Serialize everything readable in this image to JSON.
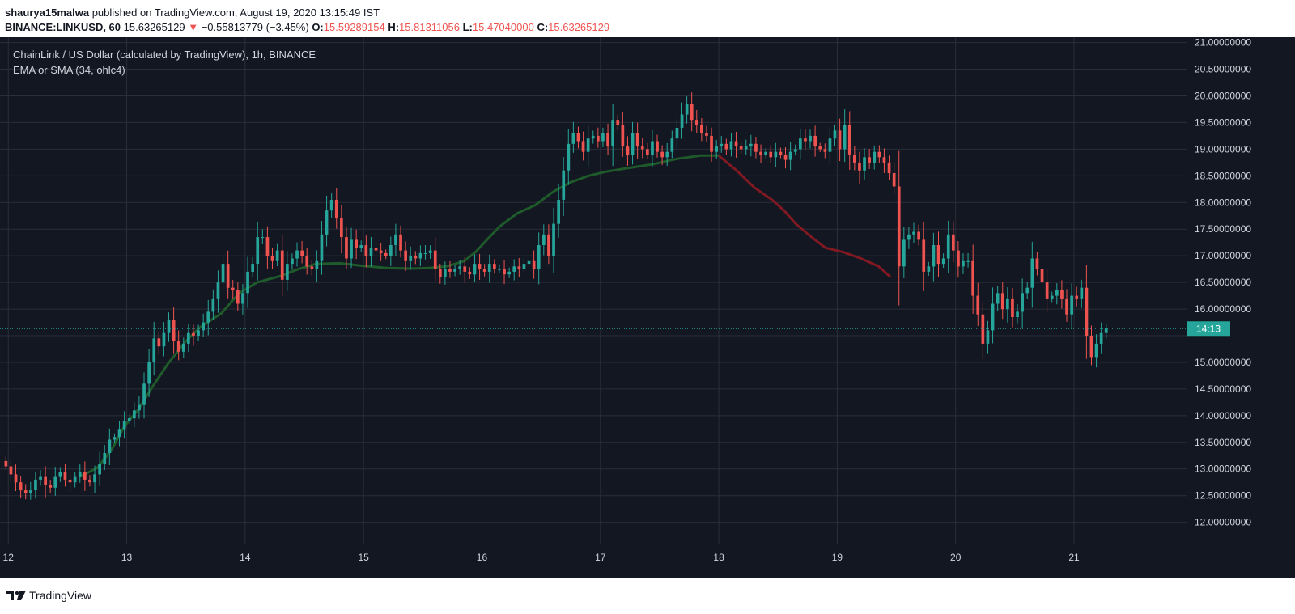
{
  "header": {
    "user": "shaurya15malwa",
    "published_text": "published on TradingView.com, August 19, 2020 13:15:49 IST",
    "symbol": "BINANCE:LINKUSD, 60",
    "last_price": "15.63265129",
    "change_arrow": "▼",
    "change": "−0.55813779 (−3.45%)",
    "o_label": "O:",
    "o_value": "15.59289154",
    "h_label": "H:",
    "h_value": "15.81311056",
    "l_label": "L:",
    "l_value": "15.47040000",
    "c_label": "C:",
    "c_value": "15.63265129"
  },
  "legend": {
    "title": "ChainLink / US Dollar (calculated by TradingView), 1h, BINANCE",
    "indicator": "EMA or SMA (34, ohlc4)"
  },
  "footer": {
    "brand": "TradingView"
  },
  "colors": {
    "background": "#131722",
    "grid": "#2a2e39",
    "up": "#26a69a",
    "down": "#ef5350",
    "ma_up": "#1e5a2a",
    "ma_down": "#801922",
    "axis_text": "#d1d4dc",
    "price_line": "#26a69a",
    "header_text": "#131722"
  },
  "chart_data": {
    "type": "candlestick",
    "interval": "1h",
    "x_unit": "days since Aug 12 00:00",
    "x_ticks": [
      {
        "x": 0,
        "label": "12"
      },
      {
        "x": 1,
        "label": "13"
      },
      {
        "x": 2,
        "label": "14"
      },
      {
        "x": 3,
        "label": "15"
      },
      {
        "x": 4,
        "label": "16"
      },
      {
        "x": 5,
        "label": "17"
      },
      {
        "x": 6,
        "label": "18"
      },
      {
        "x": 7,
        "label": "19"
      },
      {
        "x": 8,
        "label": "20"
      },
      {
        "x": 9,
        "label": "21"
      }
    ],
    "xlim": [
      -0.07,
      9.95
    ],
    "ylim": [
      11.6,
      21.1
    ],
    "y_ticks": [
      12,
      12.5,
      13,
      13.5,
      14,
      14.5,
      15,
      15.5,
      16,
      16.5,
      17,
      17.5,
      18,
      18.5,
      19,
      19.5,
      20,
      20.5,
      21
    ],
    "y_tick_labels": [
      "12.00000000",
      "12.50000000",
      "13.00000000",
      "13.50000000",
      "14.00000000",
      "14.50000000",
      "15.00000000",
      "15.50000000",
      "16.00000000",
      "16.50000000",
      "17.00000000",
      "17.50000000",
      "18.00000000",
      "18.50000000",
      "19.00000000",
      "19.50000000",
      "20.00000000",
      "20.50000000",
      "21.00000000"
    ],
    "current_price": 15.63265129,
    "countdown_label": "14:13",
    "grid": true,
    "series": [
      {
        "name": "LINKUSD",
        "kind": "ohlc",
        "start_x": -0.02,
        "step": 0.041667,
        "closes": [
          13.05,
          12.9,
          12.75,
          12.6,
          12.55,
          12.6,
          12.8,
          12.85,
          12.7,
          12.65,
          12.85,
          12.95,
          12.8,
          12.75,
          12.85,
          12.95,
          12.8,
          12.75,
          12.9,
          13.1,
          13.3,
          13.55,
          13.6,
          13.75,
          13.9,
          13.95,
          14.1,
          14.2,
          14.6,
          15.0,
          15.45,
          15.3,
          15.55,
          15.8,
          15.4,
          15.2,
          15.35,
          15.55,
          15.5,
          15.6,
          15.75,
          15.95,
          16.2,
          16.5,
          16.85,
          16.4,
          16.35,
          16.1,
          16.3,
          16.7,
          16.85,
          17.35,
          17.35,
          17.0,
          16.9,
          17.1,
          16.55,
          16.85,
          16.95,
          17.1,
          17.0,
          16.8,
          16.75,
          16.9,
          17.4,
          17.85,
          18.05,
          17.7,
          17.35,
          16.95,
          17.3,
          17.15,
          17.2,
          17.0,
          17.15,
          17.1,
          17.05,
          17.0,
          17.2,
          17.4,
          17.1,
          16.9,
          17.0,
          16.95,
          17.05,
          17.05,
          17.1,
          16.75,
          16.6,
          16.75,
          16.7,
          16.75,
          16.8,
          16.7,
          16.65,
          16.85,
          16.75,
          16.7,
          16.85,
          16.75,
          16.75,
          16.65,
          16.7,
          16.8,
          16.75,
          16.85,
          16.9,
          16.75,
          17.2,
          17.4,
          17.0,
          17.6,
          18.05,
          18.6,
          19.1,
          19.3,
          19.15,
          18.95,
          19.2,
          19.25,
          19.15,
          19.3,
          19.05,
          19.55,
          19.45,
          19.05,
          18.9,
          19.3,
          19.05,
          19.0,
          18.9,
          19.15,
          18.95,
          18.85,
          18.95,
          19.2,
          19.4,
          19.65,
          19.85,
          19.55,
          19.45,
          19.3,
          19.25,
          18.95,
          19.05,
          19.1,
          19.0,
          19.15,
          19.05,
          19.0,
          19.05,
          19.1,
          18.95,
          18.9,
          18.95,
          18.85,
          18.95,
          18.9,
          18.8,
          18.95,
          19.0,
          19.2,
          19.15,
          19.25,
          19.05,
          19.0,
          18.95,
          19.2,
          19.35,
          19.0,
          19.45,
          18.9,
          18.75,
          18.6,
          18.85,
          18.75,
          18.95,
          18.85,
          18.75,
          18.55,
          18.3,
          16.8,
          17.3,
          17.4,
          17.45,
          17.3,
          16.7,
          16.8,
          17.2,
          16.85,
          16.95,
          17.4,
          17.1,
          16.8,
          16.9,
          16.9,
          16.25,
          15.9,
          15.35,
          15.6,
          16.1,
          16.3,
          16.0,
          16.2,
          15.85,
          15.95,
          16.3,
          16.4,
          16.95,
          16.75,
          16.5,
          16.2,
          16.25,
          16.35,
          16.2,
          15.9,
          16.25,
          16.2,
          16.4,
          15.5,
          15.1,
          15.35,
          15.55,
          15.63
        ]
      }
    ],
    "moving_average": {
      "name": "EMA or SMA (34, ohlc4)",
      "points": [
        [
          0.6,
          12.85
        ],
        [
          0.75,
          13.02
        ],
        [
          0.87,
          13.35
        ],
        [
          0.98,
          13.8
        ],
        [
          1.1,
          14.12
        ],
        [
          1.22,
          14.55
        ],
        [
          1.35,
          14.98
        ],
        [
          1.5,
          15.4
        ],
        [
          1.62,
          15.66
        ],
        [
          1.8,
          15.92
        ],
        [
          1.95,
          16.3
        ],
        [
          2.1,
          16.5
        ],
        [
          2.3,
          16.62
        ],
        [
          2.45,
          16.75
        ],
        [
          2.6,
          16.85
        ],
        [
          2.8,
          16.86
        ],
        [
          3.0,
          16.81
        ],
        [
          3.2,
          16.77
        ],
        [
          3.4,
          16.76
        ],
        [
          3.55,
          16.77
        ],
        [
          3.7,
          16.8
        ],
        [
          3.85,
          16.9
        ],
        [
          3.95,
          17.08
        ],
        [
          4.05,
          17.32
        ],
        [
          4.15,
          17.55
        ],
        [
          4.3,
          17.8
        ],
        [
          4.45,
          17.95
        ],
        [
          4.6,
          18.2
        ],
        [
          4.75,
          18.38
        ],
        [
          4.9,
          18.5
        ],
        [
          5.05,
          18.58
        ],
        [
          5.25,
          18.65
        ],
        [
          5.45,
          18.72
        ],
        [
          5.65,
          18.82
        ],
        [
          5.85,
          18.88
        ],
        [
          6.0,
          18.88
        ],
        [
          6.15,
          18.6
        ],
        [
          6.3,
          18.28
        ],
        [
          6.45,
          18.05
        ],
        [
          6.55,
          17.85
        ],
        [
          6.65,
          17.6
        ],
        [
          6.8,
          17.32
        ],
        [
          6.9,
          17.15
        ],
        [
          7.05,
          17.07
        ],
        [
          7.2,
          16.95
        ],
        [
          7.35,
          16.8
        ],
        [
          7.45,
          16.6
        ]
      ],
      "color_split_x": 6.0
    }
  }
}
